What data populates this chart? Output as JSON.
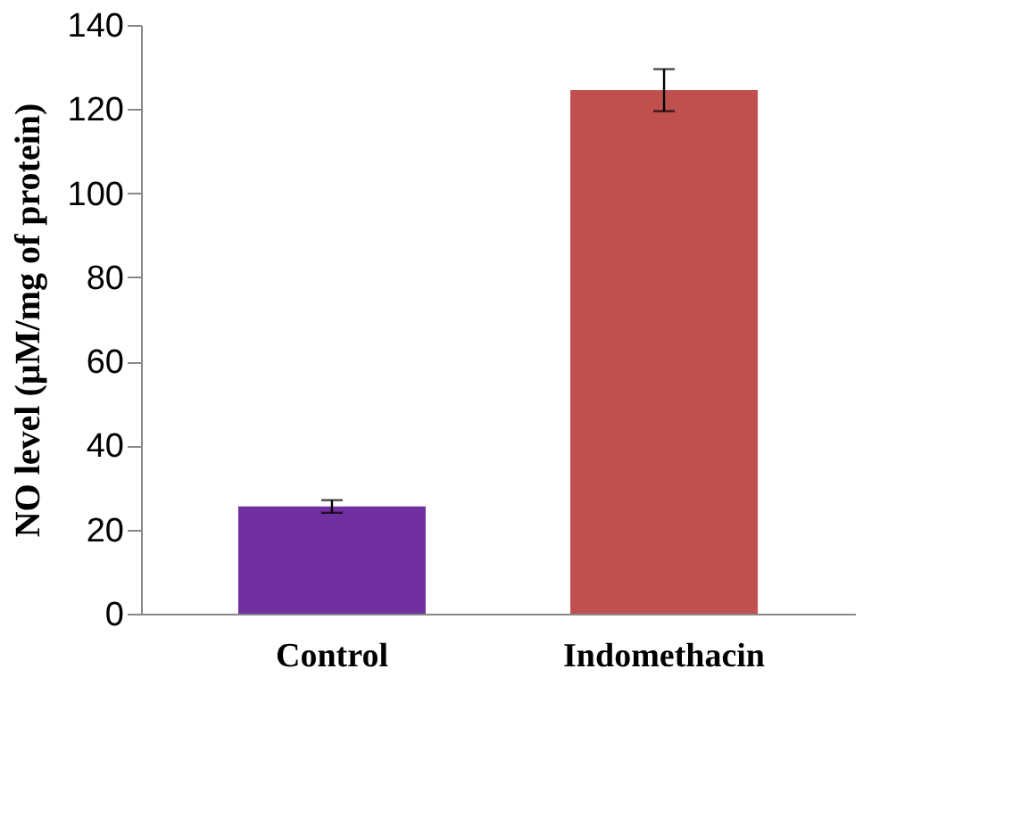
{
  "chart_data": {
    "type": "bar",
    "ylabel": "NO level (µM/mg of protein)",
    "categories": [
      "Control",
      "Indomethacin"
    ],
    "values": [
      25.5,
      124.5
    ],
    "colors": [
      "#7030a0",
      "#c0504d"
    ],
    "errors": [
      1.5,
      5
    ],
    "ylim": [
      0,
      140
    ],
    "yticks": [
      0,
      20,
      40,
      60,
      80,
      100,
      120,
      140
    ],
    "grid": false
  }
}
